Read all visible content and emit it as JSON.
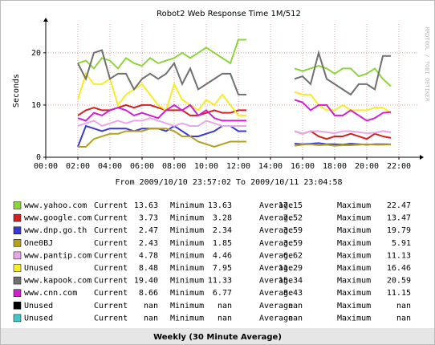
{
  "chart_data": {
    "type": "line",
    "title": "Robot2 Web Response Time 1M/512",
    "y_label": "Seconds",
    "watermark": "RRDTOOL / TOBI OETIKER",
    "subtitle": "From 2009/10/10 23:57:02 To 2009/10/11 23:04:58",
    "footer": "Weekly (30 Minute Average)",
    "stat_labels": [
      "Current",
      "Minimum",
      "Average",
      "Maximum"
    ],
    "grid": true,
    "xlim": [
      0,
      23.15
    ],
    "ylim": [
      0,
      25.5
    ],
    "xticks": [
      {
        "value": 0,
        "label": "00:00"
      },
      {
        "value": 2,
        "label": "02:00"
      },
      {
        "value": 4,
        "label": "04:00"
      },
      {
        "value": 6,
        "label": "06:00"
      },
      {
        "value": 8,
        "label": "08:00"
      },
      {
        "value": 10,
        "label": "10:00"
      },
      {
        "value": 12,
        "label": "12:00"
      },
      {
        "value": 14,
        "label": "14:00"
      },
      {
        "value": 16,
        "label": "16:00"
      },
      {
        "value": 18,
        "label": "18:00"
      },
      {
        "value": 20,
        "label": "20:00"
      },
      {
        "value": 22,
        "label": "22:00"
      }
    ],
    "yticks": [
      0,
      10,
      20
    ],
    "x": [
      2,
      2.5,
      3,
      3.5,
      4,
      4.5,
      5,
      5.5,
      6,
      6.5,
      7,
      7.5,
      8,
      8.5,
      9,
      9.5,
      10,
      10.5,
      11,
      11.5,
      12,
      12.5,
      13,
      13.5,
      14,
      14.5,
      15,
      15.5,
      16,
      16.5,
      17,
      17.5,
      18,
      18.5,
      19,
      19.5,
      20,
      20.5,
      21,
      21.5
    ],
    "series": [
      {
        "name": "www.yahoo.com",
        "color": "#8ed43c",
        "current": 13.63,
        "minimum": 13.63,
        "average": 17.15,
        "maximum": 22.47,
        "values": [
          18,
          18.5,
          17,
          19,
          18.5,
          17,
          19,
          18,
          17.5,
          19,
          18,
          18.5,
          19,
          20,
          19,
          20,
          21,
          20,
          19,
          18,
          22.5,
          22.5,
          null,
          null,
          null,
          null,
          null,
          17,
          16.5,
          17,
          17.5,
          17,
          16,
          17,
          17,
          15.5,
          16,
          17,
          15,
          13.6
        ]
      },
      {
        "name": "www.google.com",
        "color": "#d42020",
        "current": 3.73,
        "minimum": 3.28,
        "average": 7.52,
        "maximum": 13.47,
        "values": [
          8,
          9,
          9.5,
          9,
          9,
          9.5,
          10,
          9.5,
          10,
          10,
          9.5,
          9,
          9,
          9,
          8,
          8,
          8.5,
          9,
          8.5,
          8.5,
          9,
          9,
          null,
          null,
          null,
          null,
          null,
          5,
          4.5,
          5,
          4,
          3.5,
          4,
          4,
          4.5,
          4,
          3.5,
          4.5,
          4,
          3.7
        ]
      },
      {
        "name": "www.dnp.go.th",
        "color": "#3a3ad0",
        "current": 2.47,
        "minimum": 2.34,
        "average": 3.59,
        "maximum": 19.79,
        "values": [
          2,
          6,
          5.5,
          5,
          5.5,
          5.5,
          5.5,
          5,
          5.5,
          5.5,
          5.5,
          5,
          6,
          5,
          4,
          4,
          4.5,
          5,
          6,
          6,
          5,
          5,
          null,
          null,
          null,
          null,
          null,
          2.6,
          2.5,
          2.6,
          2.7,
          2.5,
          2.5,
          2.4,
          2.6,
          2.5,
          2.4,
          2.5,
          2.5,
          2.47
        ]
      },
      {
        "name": "One0BJ",
        "color": "#b4a020",
        "current": 2.43,
        "minimum": 1.85,
        "average": 3.59,
        "maximum": 5.91,
        "values": [
          2,
          2,
          3.5,
          4,
          4.5,
          4.5,
          5,
          5,
          5,
          5.5,
          5.5,
          5.5,
          5,
          4,
          4,
          3,
          2.5,
          2,
          2.5,
          3,
          3,
          3,
          null,
          null,
          null,
          null,
          null,
          2.2,
          2.4,
          2.5,
          2.3,
          2.4,
          2.2,
          2.3,
          2.3,
          2.4,
          2.5,
          2.4,
          2.4,
          2.43
        ]
      },
      {
        "name": "www.pantip.com",
        "color": "#e8a8e8",
        "current": 4.78,
        "minimum": 4.46,
        "average": 6.62,
        "maximum": 11.13,
        "values": [
          6,
          6.5,
          7,
          6,
          6.5,
          7,
          6.5,
          7,
          7,
          7.5,
          7,
          6.5,
          6,
          6.5,
          6,
          6,
          7,
          6.5,
          6,
          6,
          6,
          6,
          null,
          null,
          null,
          null,
          null,
          5,
          4.5,
          5,
          5,
          4.8,
          4.6,
          5,
          5,
          4.8,
          4.6,
          4.7,
          5,
          4.78
        ]
      },
      {
        "name": "Unused",
        "color": "#f8ec28",
        "current": 8.48,
        "minimum": 7.95,
        "average": 11.29,
        "maximum": 16.46,
        "values": [
          11,
          16,
          14,
          14,
          15,
          10,
          12,
          13,
          14,
          12,
          10,
          9,
          14,
          11,
          10,
          9,
          11,
          10,
          12,
          10,
          8,
          8,
          null,
          null,
          null,
          null,
          null,
          12.5,
          12,
          12,
          10,
          9,
          9,
          10,
          9,
          9,
          9,
          9.5,
          9.5,
          8.5
        ]
      },
      {
        "name": "www.kapook.com",
        "color": "#707070",
        "current": 19.4,
        "minimum": 11.33,
        "average": 15.34,
        "maximum": 20.59,
        "values": [
          18,
          15,
          20,
          20.5,
          15,
          16,
          16,
          13,
          15,
          16,
          15,
          16,
          18,
          14,
          17,
          13,
          14,
          15,
          16,
          16,
          12,
          12,
          null,
          null,
          null,
          null,
          null,
          15,
          15.5,
          14,
          20,
          15,
          14,
          13,
          12,
          14,
          14,
          13,
          19.4,
          19.4
        ]
      },
      {
        "name": "www.cnn.com",
        "color": "#d020d0",
        "current": 8.66,
        "minimum": 6.77,
        "average": 8.43,
        "maximum": 11.15,
        "values": [
          7.5,
          7,
          8.5,
          8,
          9,
          9.5,
          9,
          8,
          8.5,
          8,
          7.5,
          9,
          10,
          9,
          10,
          8,
          9,
          7.5,
          7,
          7,
          7,
          7,
          null,
          null,
          null,
          null,
          null,
          11,
          10.5,
          9,
          10,
          10,
          8,
          8,
          9,
          8,
          7,
          7.5,
          8.5,
          8.66
        ]
      },
      {
        "name": "Unused",
        "color": "#000000",
        "current": "nan",
        "minimum": "nan",
        "average": "nan",
        "maximum": "nan",
        "values": [
          null,
          null,
          null,
          null,
          null,
          null,
          null,
          null,
          null,
          null,
          null,
          null,
          null,
          null,
          null,
          null,
          null,
          null,
          null,
          null,
          null,
          null,
          null,
          null,
          null,
          null,
          null,
          null,
          null,
          null,
          null,
          null,
          null,
          null,
          null,
          null,
          null,
          null,
          null,
          null
        ]
      },
      {
        "name": "Unused",
        "color": "#40c8c8",
        "current": "nan",
        "minimum": "nan",
        "average": "nan",
        "maximum": "nan",
        "values": [
          null,
          null,
          null,
          null,
          null,
          null,
          null,
          null,
          null,
          null,
          null,
          null,
          null,
          null,
          null,
          null,
          null,
          null,
          null,
          null,
          null,
          null,
          null,
          null,
          null,
          null,
          null,
          null,
          null,
          null,
          null,
          null,
          null,
          null,
          null,
          null,
          null,
          null,
          null,
          null
        ]
      }
    ]
  }
}
